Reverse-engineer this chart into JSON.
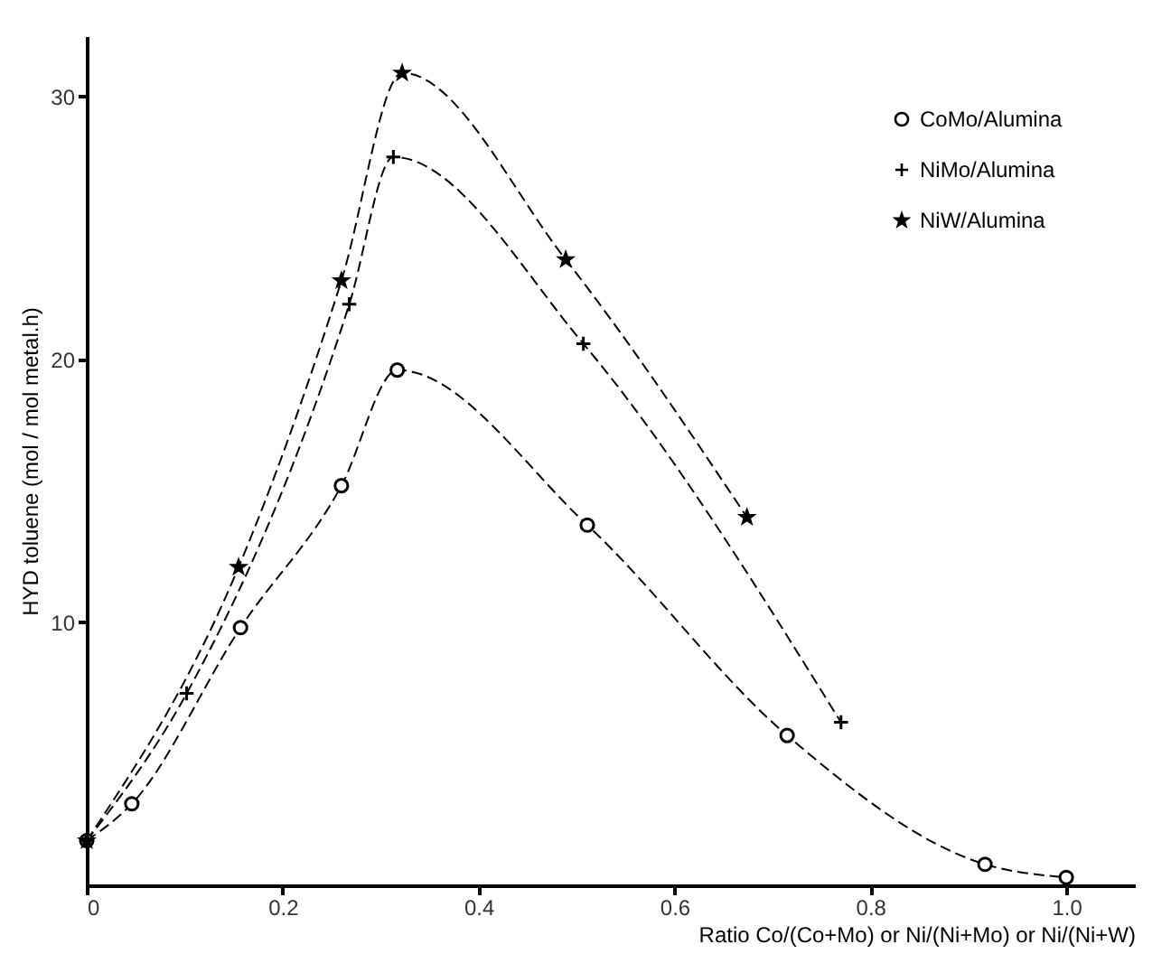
{
  "chart_data": {
    "type": "line",
    "xlabel": "Ratio   Co/(Co+Mo)  or  Ni/(Ni+Mo)  or  Ni/(Ni+W)",
    "ylabel": "HYD toluene (mol / mol metal.h)",
    "xlim": [
      0,
      1.07
    ],
    "ylim": [
      0,
      32.3
    ],
    "xticks": [
      0,
      0.2,
      0.4,
      0.6,
      0.8,
      {
        "value": 1,
        "label": "1.0"
      }
    ],
    "yticks": [
      10,
      20,
      30
    ],
    "grid": false,
    "legend": "top right",
    "series": [
      {
        "name": "CoMo/Alumina",
        "color": "#000000",
        "marker": "circle",
        "line_style": "dashed",
        "x": [
          0,
          0.046,
          0.157,
          0.26,
          0.317,
          0.511,
          0.715,
          0.917,
          1.0
        ],
        "values": [
          1.7,
          3.1,
          9.8,
          15.2,
          19.6,
          13.7,
          5.7,
          0.8,
          0.3
        ]
      },
      {
        "name": "NiMo/Alumina",
        "color": "#000000",
        "marker": "cross",
        "line_style": "dashed",
        "x": [
          0,
          0.102,
          0.268,
          0.313,
          0.507,
          0.77
        ],
        "values": [
          1.7,
          7.3,
          22.1,
          27.7,
          20.6,
          6.2
        ]
      },
      {
        "name": "NiW/Alumina",
        "color": "#000000",
        "marker": "star",
        "line_style": "dashed",
        "x": [
          0,
          0.155,
          0.26,
          0.322,
          0.489,
          0.674
        ],
        "values": [
          1.7,
          12.1,
          23.0,
          30.9,
          23.8,
          14.0
        ]
      }
    ]
  }
}
